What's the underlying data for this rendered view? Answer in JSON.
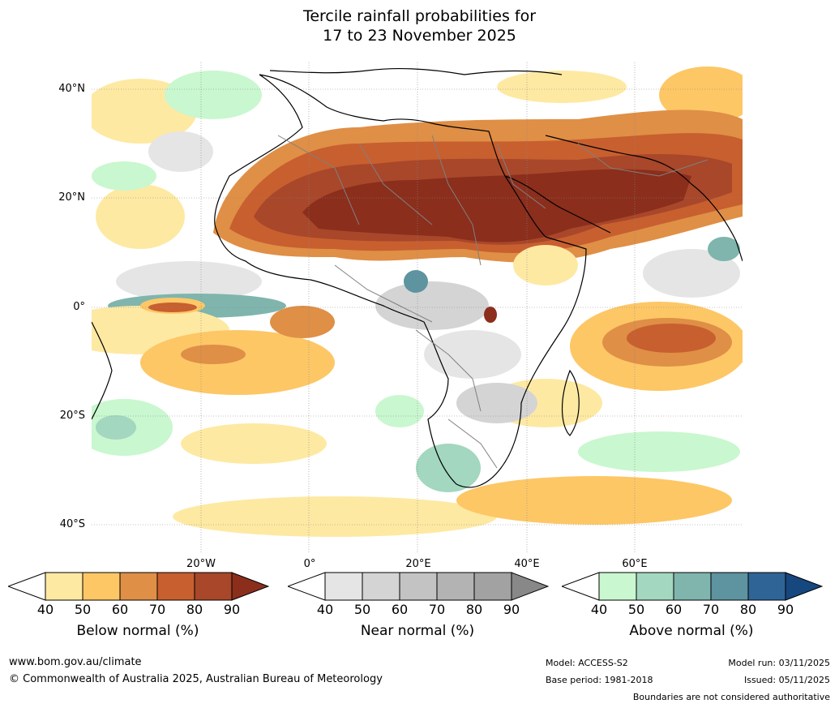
{
  "title_line1": "Tercile rainfall probabilities for",
  "title_line2": "17 to 23 November 2025",
  "map": {
    "lat_labels": [
      "40°N",
      "20°N",
      "0°",
      "20°S",
      "40°S"
    ],
    "lon_labels": [
      "20°W",
      "0°",
      "20°E",
      "40°E",
      "60°E"
    ]
  },
  "colorbars": {
    "below": {
      "title": "Below normal (%)",
      "ticks": [
        "40",
        "50",
        "60",
        "70",
        "80",
        "90"
      ],
      "colors": [
        "#ffffff",
        "#fee9a3",
        "#fdc766",
        "#df8f46",
        "#c85f2f",
        "#a8472a",
        "#8b2e1c"
      ]
    },
    "near": {
      "title": "Near normal (%)",
      "ticks": [
        "40",
        "50",
        "60",
        "70",
        "80",
        "90"
      ],
      "colors": [
        "#ffffff",
        "#e5e5e5",
        "#d4d4d4",
        "#c3c3c3",
        "#b3b3b3",
        "#a2a2a2",
        "#888888"
      ]
    },
    "above": {
      "title": "Above normal (%)",
      "ticks": [
        "40",
        "50",
        "60",
        "70",
        "80",
        "90"
      ],
      "colors": [
        "#ffffff",
        "#c9f7cf",
        "#a3d7bf",
        "#7fb5ad",
        "#5e93a0",
        "#2f6497",
        "#16477f"
      ]
    }
  },
  "footer": {
    "url": "www.bom.gov.au/climate",
    "copyright": "© Commonwealth of Australia 2025, Australian Bureau of Meteorology",
    "model": "Model: ACCESS-S2",
    "base_period": "Base period: 1981-2018",
    "model_run": "Model run: 03/11/2025",
    "issued": "Issued: 05/11/2025",
    "disclaimer": "Boundaries are not considered authoritative"
  }
}
